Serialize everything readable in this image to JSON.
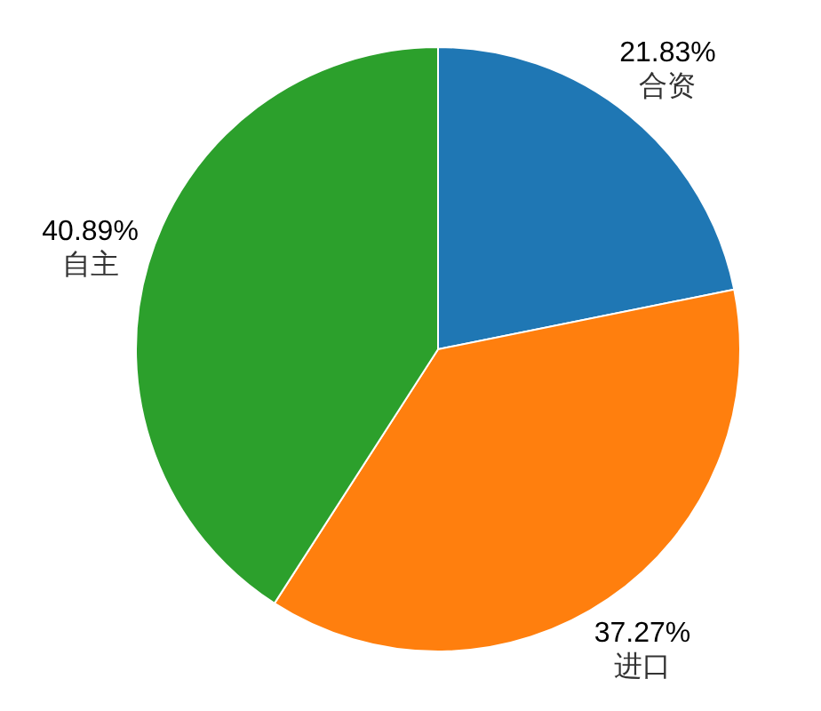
{
  "chart_data": {
    "type": "pie",
    "categories": [
      "合资",
      "进口",
      "自主"
    ],
    "values": [
      21.83,
      37.27,
      40.89
    ],
    "colors": [
      "#1f77b4",
      "#ff7f0e",
      "#2ca02c"
    ],
    "value_labels": [
      "21.83%",
      "37.27%",
      "40.89%"
    ]
  }
}
